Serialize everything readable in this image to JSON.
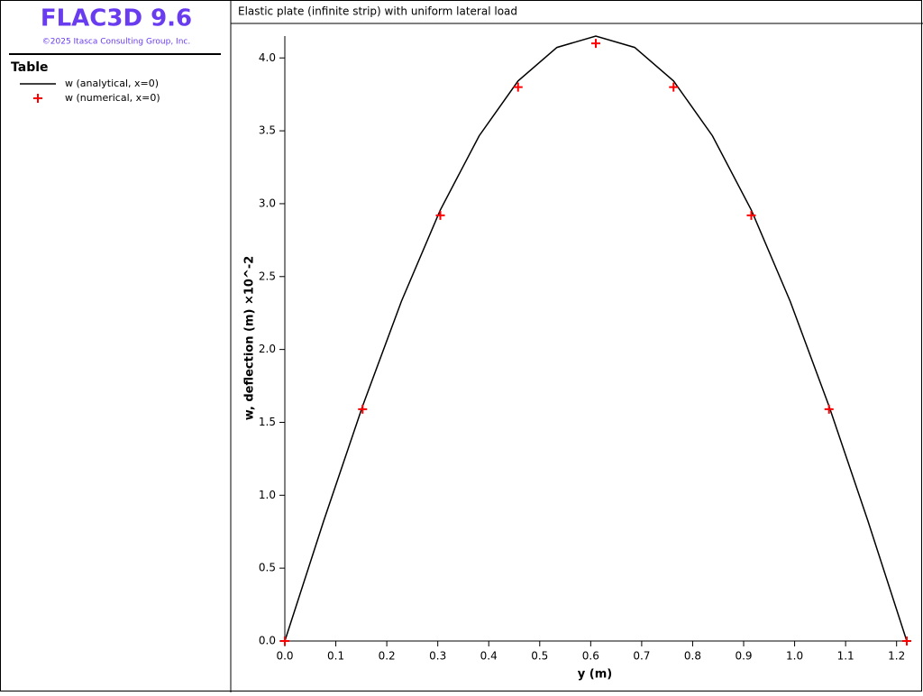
{
  "app": {
    "title": "FLAC3D 9.6",
    "copyright": "©2025 Itasca Consulting Group, Inc.",
    "legend_heading": "Table"
  },
  "chart_data": {
    "type": "line",
    "title": "Elastic plate (infinite strip) with uniform lateral load",
    "x_label": "y (m)",
    "y_label": "w, deflection (m)  ×10^-2",
    "xlim": [
      0,
      1.22
    ],
    "ylim": [
      0,
      4.15
    ],
    "xticks": [
      {
        "value": 0,
        "label": "0.0"
      },
      0.1,
      0.2,
      0.3,
      0.4,
      0.5,
      0.6,
      0.7,
      0.8,
      0.9,
      {
        "value": 1,
        "label": "1.0"
      },
      1.1,
      1.2
    ],
    "yticks": [
      {
        "value": 0,
        "label": "0.0"
      },
      0.5,
      {
        "value": 1,
        "label": "1.0"
      },
      1.5,
      {
        "value": 2,
        "label": "2.0"
      },
      2.5,
      {
        "value": 3,
        "label": "3.0"
      },
      3.5,
      {
        "value": 4,
        "label": "4.0"
      }
    ],
    "series": [
      {
        "name": "w (analytical, x=0)",
        "color": "#000000",
        "style": "line",
        "x": [
          0,
          0.07625,
          0.1525,
          0.22875,
          0.305,
          0.38125,
          0.4575,
          0.53375,
          0.61,
          0.68625,
          0.7625,
          0.83875,
          0.915,
          0.99125,
          1.0675,
          1.14375,
          1.22
        ],
        "values": [
          0,
          0.824,
          1.611,
          2.331,
          2.957,
          3.466,
          3.842,
          4.072,
          4.15,
          4.072,
          3.842,
          3.466,
          2.957,
          2.331,
          1.611,
          0.824,
          0
        ]
      },
      {
        "name": "w (numerical, x=0)",
        "color": "#ff0000",
        "style": "plus",
        "x": [
          0,
          0.1525,
          0.305,
          0.4575,
          0.61,
          0.7625,
          0.915,
          1.0675,
          1.22
        ],
        "values": [
          0,
          1.59,
          2.92,
          3.8,
          4.1,
          3.8,
          2.92,
          1.59,
          0
        ]
      }
    ]
  }
}
